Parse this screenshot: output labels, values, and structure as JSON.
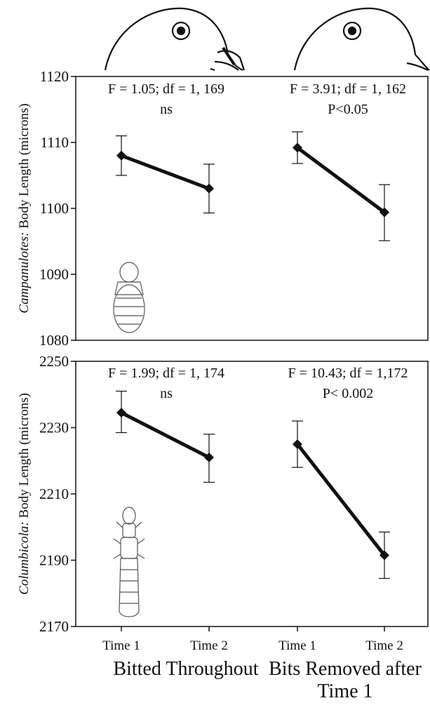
{
  "chart_data": [
    {
      "type": "line",
      "ylabel_italic": "Campanulotes:",
      "ylabel_rest": " Body Length (microns)",
      "ylim": [
        1080,
        1120
      ],
      "yticks": [
        1080,
        1090,
        1100,
        1110,
        1120
      ],
      "categories": [
        "Time 1",
        "Time 2",
        "Time 1",
        "Time 2"
      ],
      "groups": [
        {
          "stat_line1": "F = 1.05; df = 1, 169",
          "stat_line2": "ns",
          "means": [
            1108,
            1103
          ],
          "error_low": [
            1105,
            1099.3
          ],
          "error_high": [
            1111,
            1106.7
          ]
        },
        {
          "stat_line1": "F = 3.91; df = 1, 162",
          "stat_line2": "P<0.05",
          "means": [
            1109.2,
            1099.4
          ],
          "error_low": [
            1106.8,
            1095.1
          ],
          "error_high": [
            1111.6,
            1103.6
          ]
        }
      ]
    },
    {
      "type": "line",
      "ylabel_italic": "Columbicola:",
      "ylabel_rest": " Body Length (microns)",
      "ylim": [
        2170,
        2250
      ],
      "yticks": [
        2170,
        2190,
        2210,
        2230,
        2250
      ],
      "categories": [
        "Time 1",
        "Time 2",
        "Time 1",
        "Time 2"
      ],
      "groups": [
        {
          "stat_line1": "F = 1.99; df = 1, 174",
          "stat_line2": "ns",
          "means": [
            2234.5,
            2221
          ],
          "error_low": [
            2228.5,
            2213.5
          ],
          "error_high": [
            2241,
            2228
          ]
        },
        {
          "stat_line1": "F = 10.43; df = 1,172",
          "stat_line2": "P< 0.002",
          "means": [
            2225,
            2191.5
          ],
          "error_low": [
            2218,
            2184.5
          ],
          "error_high": [
            2232,
            2198.5
          ]
        }
      ]
    }
  ],
  "group_labels": [
    "Bitted Throughout",
    "Bits Removed after Time 1"
  ],
  "illustrations": [
    "pigeon-head-with-bit-icon",
    "pigeon-head-icon",
    "campanulotes-louse-icon",
    "columbicola-louse-icon"
  ]
}
